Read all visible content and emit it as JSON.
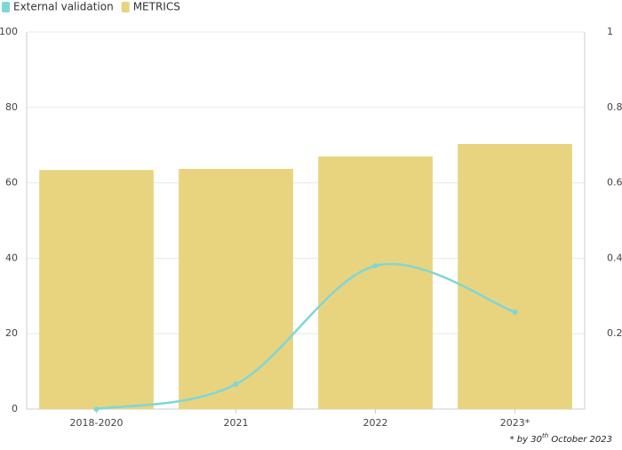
{
  "chart_data": {
    "type": "bar-line",
    "categories": [
      "2018-2020",
      "2021",
      "2022",
      "2023*"
    ],
    "series": [
      {
        "name": "External validation",
        "color": "#7fd6d8",
        "type": "line",
        "axis": "y2",
        "values": [
          0,
          0.066,
          0.38,
          0.257
        ]
      },
      {
        "name": "METRICS",
        "color": "#e8d47e",
        "type": "bar",
        "values": [
          63.4,
          63.7,
          67,
          70.3
        ]
      }
    ],
    "ylim": [
      0,
      100
    ],
    "yticks": [
      0,
      20,
      40,
      60,
      80,
      100
    ],
    "y2lim": [
      0,
      1
    ],
    "y2ticks": [
      0.2,
      0.4,
      0.6,
      0.8,
      1
    ],
    "grid": true,
    "legend": "top-left",
    "note": [
      "* by 30",
      "th",
      " October 2023"
    ]
  }
}
